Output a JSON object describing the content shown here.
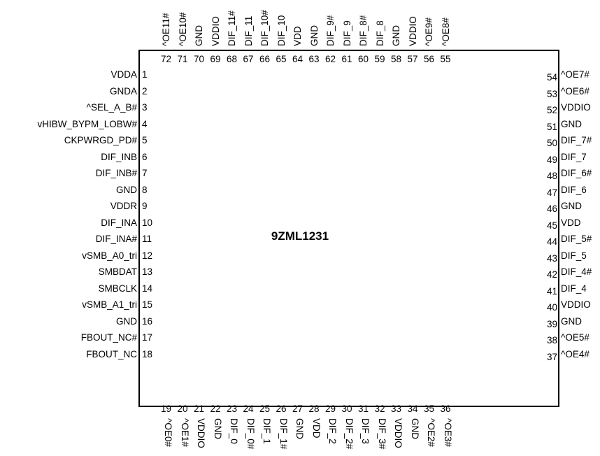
{
  "chip": {
    "name": "9ZML1231"
  },
  "pins": {
    "left": [
      {
        "num": "1",
        "name": "VDDA"
      },
      {
        "num": "2",
        "name": "GNDA"
      },
      {
        "num": "3",
        "name": "^SEL_A_B#"
      },
      {
        "num": "4",
        "name": "vHIBW_BYPM_LOBW#"
      },
      {
        "num": "5",
        "name": "CKPWRGD_PD#"
      },
      {
        "num": "6",
        "name": "DIF_INB"
      },
      {
        "num": "7",
        "name": "DIF_INB#"
      },
      {
        "num": "8",
        "name": "GND"
      },
      {
        "num": "9",
        "name": "VDDR"
      },
      {
        "num": "10",
        "name": "DIF_INA"
      },
      {
        "num": "11",
        "name": "DIF_INA#"
      },
      {
        "num": "12",
        "name": "vSMB_A0_tri"
      },
      {
        "num": "13",
        "name": "SMBDAT"
      },
      {
        "num": "14",
        "name": "SMBCLK"
      },
      {
        "num": "15",
        "name": "vSMB_A1_tri"
      },
      {
        "num": "16",
        "name": "GND"
      },
      {
        "num": "17",
        "name": "FBOUT_NC#"
      },
      {
        "num": "18",
        "name": "FBOUT_NC"
      }
    ],
    "bottom": [
      {
        "num": "19",
        "name": "^OE0#"
      },
      {
        "num": "20",
        "name": "^OE1#"
      },
      {
        "num": "21",
        "name": "VDDIO"
      },
      {
        "num": "22",
        "name": "GND"
      },
      {
        "num": "23",
        "name": "DIF_0"
      },
      {
        "num": "24",
        "name": "DIF_0#"
      },
      {
        "num": "25",
        "name": "DIF_1"
      },
      {
        "num": "26",
        "name": "DIF_1#"
      },
      {
        "num": "27",
        "name": "GND"
      },
      {
        "num": "28",
        "name": "VDD"
      },
      {
        "num": "29",
        "name": "DIF_2"
      },
      {
        "num": "30",
        "name": "DIF_2#"
      },
      {
        "num": "31",
        "name": "DIF_3"
      },
      {
        "num": "32",
        "name": "DIF_3#"
      },
      {
        "num": "33",
        "name": "VDDIO"
      },
      {
        "num": "34",
        "name": "GND"
      },
      {
        "num": "35",
        "name": "^OE2#"
      },
      {
        "num": "36",
        "name": "^OE3#"
      }
    ],
    "right": [
      {
        "num": "54",
        "name": "^OE7#"
      },
      {
        "num": "53",
        "name": "^OE6#"
      },
      {
        "num": "52",
        "name": "VDDIO"
      },
      {
        "num": "51",
        "name": "GND"
      },
      {
        "num": "50",
        "name": "DIF_7#"
      },
      {
        "num": "49",
        "name": "DIF_7"
      },
      {
        "num": "48",
        "name": "DIF_6#"
      },
      {
        "num": "47",
        "name": "DIF_6"
      },
      {
        "num": "46",
        "name": "GND"
      },
      {
        "num": "45",
        "name": "VDD"
      },
      {
        "num": "44",
        "name": "DIF_5#"
      },
      {
        "num": "43",
        "name": "DIF_5"
      },
      {
        "num": "42",
        "name": "DIF_4#"
      },
      {
        "num": "41",
        "name": "DIF_4"
      },
      {
        "num": "40",
        "name": "VDDIO"
      },
      {
        "num": "39",
        "name": "GND"
      },
      {
        "num": "38",
        "name": "^OE5#"
      },
      {
        "num": "37",
        "name": "^OE4#"
      }
    ],
    "top": [
      {
        "num": "72",
        "name": "^OE11#"
      },
      {
        "num": "71",
        "name": "^OE10#"
      },
      {
        "num": "70",
        "name": "GND"
      },
      {
        "num": "69",
        "name": "VDDIO"
      },
      {
        "num": "68",
        "name": "DIF_11#"
      },
      {
        "num": "67",
        "name": "DIF_11"
      },
      {
        "num": "66",
        "name": "DIF_10#"
      },
      {
        "num": "65",
        "name": "DIF_10"
      },
      {
        "num": "64",
        "name": "VDD"
      },
      {
        "num": "63",
        "name": "GND"
      },
      {
        "num": "62",
        "name": "DIF_9#"
      },
      {
        "num": "61",
        "name": "DIF_9"
      },
      {
        "num": "60",
        "name": "DIF_8#"
      },
      {
        "num": "59",
        "name": "DIF_8"
      },
      {
        "num": "58",
        "name": "GND"
      },
      {
        "num": "57",
        "name": "VDDIO"
      },
      {
        "num": "56",
        "name": "^OE9#"
      },
      {
        "num": "55",
        "name": "^OE8#"
      }
    ]
  }
}
